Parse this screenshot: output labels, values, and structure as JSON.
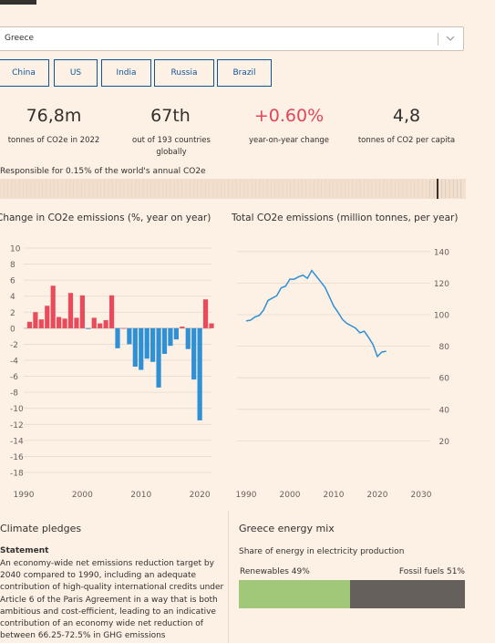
{
  "country_select": {
    "value": "Greece"
  },
  "compare_buttons": [
    "China",
    "US",
    "India",
    "Russia",
    "Brazil"
  ],
  "stats": [
    {
      "value": "76,8m",
      "label": "tonnes of CO2e in 2022",
      "color": "#33302e"
    },
    {
      "value": "67th",
      "label": "out of 193 countries globally",
      "color": "#33302e"
    },
    {
      "value": "+0.60%",
      "label": "year-on-year change",
      "color": "#e34456"
    },
    {
      "value": "4,8",
      "label": "tonnes of CO2 per capita",
      "color": "#33302e"
    }
  ],
  "responsible_text": "Responsible for 0.15% of the world's annual CO2e",
  "chart_data": [
    {
      "type": "bar",
      "title": "Change in CO2e emissions (%, year on year)",
      "xlim": [
        1990,
        2022
      ],
      "ylim": [
        -18,
        10
      ],
      "yticks": [
        10,
        8,
        6,
        4,
        2,
        0,
        -2,
        -4,
        -6,
        -8,
        -10,
        -12,
        -14,
        -16,
        -18
      ],
      "xticks": [
        1990,
        2000,
        2010,
        2020
      ],
      "x": [
        1991,
        1992,
        1993,
        1994,
        1995,
        1996,
        1997,
        1998,
        1999,
        2000,
        2001,
        2002,
        2003,
        2004,
        2005,
        2006,
        2007,
        2008,
        2009,
        2010,
        2011,
        2012,
        2013,
        2014,
        2015,
        2016,
        2017,
        2018,
        2019,
        2020,
        2021,
        2022
      ],
      "values": [
        0.8,
        2.0,
        1.1,
        2.8,
        5.3,
        1.4,
        1.2,
        4.4,
        1.3,
        4.1,
        -0.1,
        1.3,
        0.6,
        1.0,
        4.1,
        -2.5,
        0.0,
        -2.0,
        -4.8,
        -5.2,
        -3.8,
        -4.2,
        -7.4,
        -3.2,
        -2.2,
        -1.4,
        0.2,
        -2.6,
        -6.4,
        -11.5,
        3.6,
        0.6
      ],
      "colors": {
        "positive": "#ea4a5a",
        "negative": "#2f90d5"
      }
    },
    {
      "type": "line",
      "title": "Total CO2e emissions (million tonnes, per year)",
      "xlim": [
        1990,
        2030
      ],
      "ylim": [
        0,
        150
      ],
      "yticks": [
        140,
        120,
        100,
        80,
        60,
        40,
        20
      ],
      "xticks": [
        1990,
        2000,
        2010,
        2020,
        2030
      ],
      "x": [
        1990,
        1991,
        1992,
        1993,
        1994,
        1995,
        1996,
        1997,
        1998,
        1999,
        2000,
        2001,
        2002,
        2003,
        2004,
        2005,
        2006,
        2007,
        2008,
        2009,
        2010,
        2011,
        2012,
        2013,
        2014,
        2015,
        2016,
        2017,
        2018,
        2019,
        2020,
        2021,
        2022
      ],
      "values": [
        96.0,
        96.5,
        98.5,
        99.5,
        103.0,
        109.0,
        110.5,
        112.0,
        117.0,
        118.0,
        122.5,
        122.5,
        124.0,
        125.0,
        123.0,
        128.0,
        124.5,
        121.0,
        117.5,
        111.5,
        105.5,
        101.5,
        97.0,
        94.5,
        93.0,
        91.5,
        88.5,
        89.5,
        85.5,
        81.0,
        73.5,
        76.3,
        76.8
      ],
      "color": "#2f90d5"
    }
  ],
  "pledges": {
    "title": "Climate pledges",
    "subtitle": "Statement",
    "body": "An economy-wide net emissions reduction target by 2040 compared to 1990, including an adequate contribution of high-quality international credits under Article 6 of the Paris Agreement in a way that is both ambitious and cost-efficient, leading to an indicative contribution of an economy wide net reduction of between 66.25-72.5% in GHG emissions"
  },
  "energy_mix": {
    "title": "Greece energy mix",
    "subtitle": "Share of energy in electricity production",
    "renewables_label": "Renewables 49%",
    "fossil_label": "Fossil fuels 51%",
    "renewables_share": 0.49,
    "colors": {
      "renewables": "#a0c878",
      "fossil": "#66605c"
    }
  }
}
